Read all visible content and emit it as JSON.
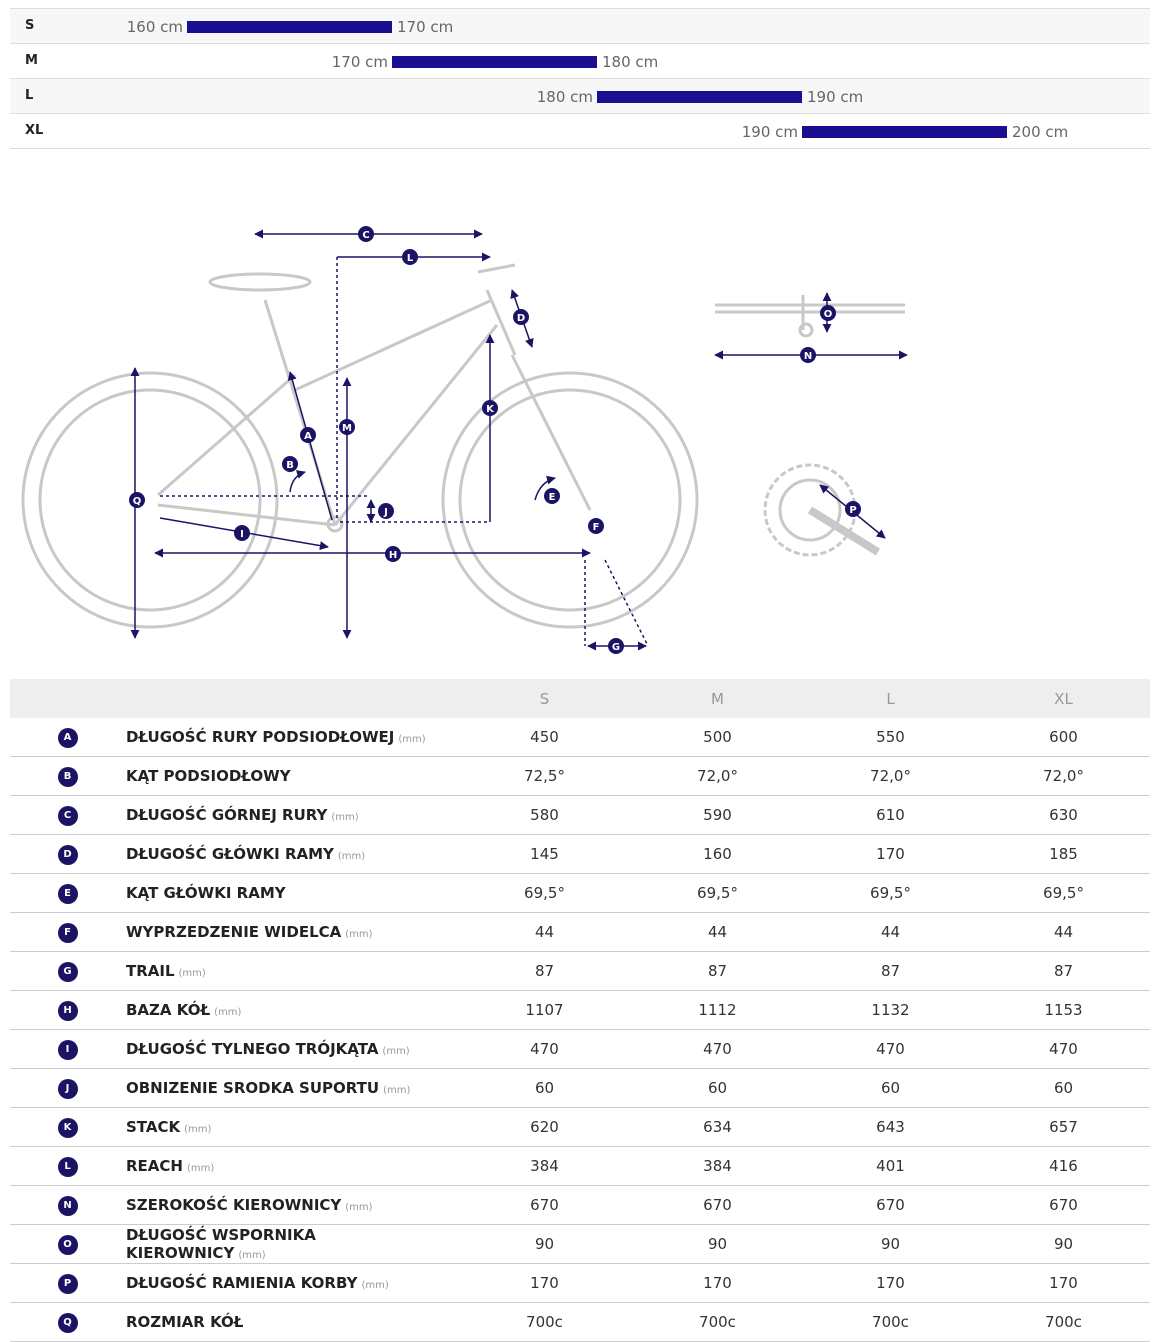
{
  "sizes": [
    {
      "size": "S",
      "min": "160 cm",
      "max": "170 cm"
    },
    {
      "size": "M",
      "min": "170 cm",
      "max": "180 cm"
    },
    {
      "size": "L",
      "min": "180 cm",
      "max": "190 cm"
    },
    {
      "size": "XL",
      "min": "190 cm",
      "max": "200 cm"
    }
  ],
  "diagram": {
    "markers": [
      "C",
      "L",
      "D",
      "K",
      "M",
      "A",
      "B",
      "Q",
      "J",
      "E",
      "F",
      "I",
      "H",
      "G",
      "O",
      "N",
      "P"
    ]
  },
  "table": {
    "headers": [
      "S",
      "M",
      "L",
      "XL"
    ],
    "rows": [
      {
        "letter": "A",
        "name": "DŁUGOŚĆ RURY PODSIODŁOWEJ",
        "unit": "(mm)",
        "values": [
          450,
          500,
          550,
          600
        ]
      },
      {
        "letter": "B",
        "name": "KĄT PODSIODŁOWY",
        "values": [
          "72,5°",
          "72,0°",
          "72,0°",
          "72,0°"
        ]
      },
      {
        "letter": "C",
        "name": "DŁUGOŚĆ GÓRNEJ RURY",
        "unit": "(mm)",
        "values": [
          580,
          590,
          610,
          630
        ]
      },
      {
        "letter": "D",
        "name": "DŁUGOŚĆ GŁÓWKI RAMY",
        "unit": "(mm)",
        "values": [
          145,
          160,
          170,
          185
        ]
      },
      {
        "letter": "E",
        "name": "KĄT GŁÓWKI RAMY",
        "values": [
          "69,5°",
          "69,5°",
          "69,5°",
          "69,5°"
        ]
      },
      {
        "letter": "F",
        "name": "WYPRZEDZENIE WIDELCA",
        "unit": "(mm)",
        "values": [
          44,
          44,
          44,
          44
        ]
      },
      {
        "letter": "G",
        "name": "TRAIL",
        "unit": "(mm)",
        "values": [
          87,
          87,
          87,
          87
        ]
      },
      {
        "letter": "H",
        "name": "BAZA KÓŁ",
        "unit": "(mm)",
        "values": [
          1107,
          1112,
          1132,
          1153
        ]
      },
      {
        "letter": "I",
        "name": "DŁUGOŚĆ TYLNEGO TRÓJKĄTA",
        "unit": "(mm)",
        "values": [
          470,
          470,
          470,
          470
        ]
      },
      {
        "letter": "J",
        "name": "OBNIZENIE SRODKA SUPORTU",
        "unit": "(mm)",
        "values": [
          60,
          60,
          60,
          60
        ]
      },
      {
        "letter": "K",
        "name": "STACK",
        "unit": "(mm)",
        "values": [
          620,
          634,
          643,
          657
        ]
      },
      {
        "letter": "L",
        "name": "REACH",
        "unit": "(mm)",
        "values": [
          384,
          384,
          401,
          416
        ]
      },
      {
        "letter": "N",
        "name": "SZEROKOŚĆ KIEROWNICY",
        "unit": "(mm)",
        "values": [
          670,
          670,
          670,
          670
        ]
      },
      {
        "letter": "O",
        "name": "DŁUGOŚĆ WSPORNIKA KIEROWNICY",
        "unit": "(mm)",
        "values": [
          90,
          90,
          90,
          90
        ]
      },
      {
        "letter": "P",
        "name": "DŁUGOŚĆ RAMIENIA KORBY",
        "unit": "(mm)",
        "values": [
          170,
          170,
          170,
          170
        ]
      },
      {
        "letter": "Q",
        "name": "ROZMIAR KÓŁ",
        "values": [
          "700c",
          "700c",
          "700c",
          "700c"
        ]
      }
    ]
  }
}
